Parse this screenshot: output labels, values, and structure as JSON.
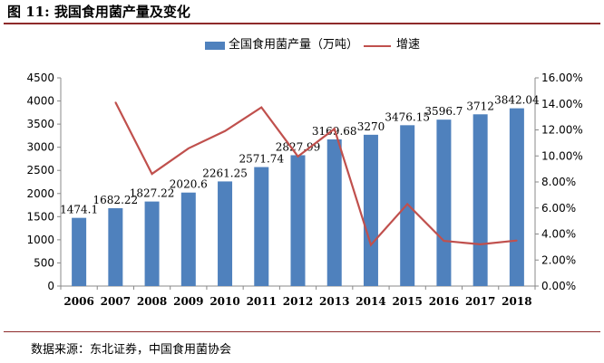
{
  "figure": {
    "title": "图  11:  我国食用菌产量及变化",
    "source": "数据来源：东北证券，中国食用菌协会"
  },
  "colors": {
    "bar": "#4f81bd",
    "line": "#c0504d",
    "rule": "#8e2a2a"
  },
  "chart_data": {
    "type": "bar",
    "categories": [
      "2006",
      "2007",
      "2008",
      "2009",
      "2010",
      "2011",
      "2012",
      "2013",
      "2014",
      "2015",
      "2016",
      "2017",
      "2018"
    ],
    "series": [
      {
        "name": "全国食用菌产量（万吨）",
        "type": "bar",
        "axis": "left",
        "values": [
          1474.1,
          1682.22,
          1827.22,
          2020.6,
          2261.25,
          2571.74,
          2827.99,
          3169.68,
          3270,
          3476.15,
          3596.7,
          3712,
          3842.04
        ],
        "labels": [
          "1474.1",
          "1682.22",
          "1827.22",
          "2020.6",
          "2261.25",
          "2571.74",
          "2827.99",
          "3169.68",
          "3270",
          "3476.15",
          "3596.7",
          "3712",
          "3842.04"
        ]
      },
      {
        "name": "增速",
        "type": "line",
        "axis": "right",
        "values": [
          null,
          14.12,
          8.62,
          10.58,
          11.91,
          13.73,
          9.96,
          12.08,
          3.16,
          6.3,
          3.47,
          3.21,
          3.5
        ]
      }
    ],
    "y_left": {
      "ylim": [
        0,
        4500
      ],
      "ticks": [
        "0",
        "500",
        "1000",
        "1500",
        "2000",
        "2500",
        "3000",
        "3500",
        "4000",
        "4500"
      ]
    },
    "y_right": {
      "ylim": [
        0,
        16
      ],
      "ticks": [
        "0.00%",
        "2.00%",
        "4.00%",
        "6.00%",
        "8.00%",
        "10.00%",
        "12.00%",
        "14.00%",
        "16.00%"
      ]
    },
    "legend": "top-center",
    "grid": false
  }
}
